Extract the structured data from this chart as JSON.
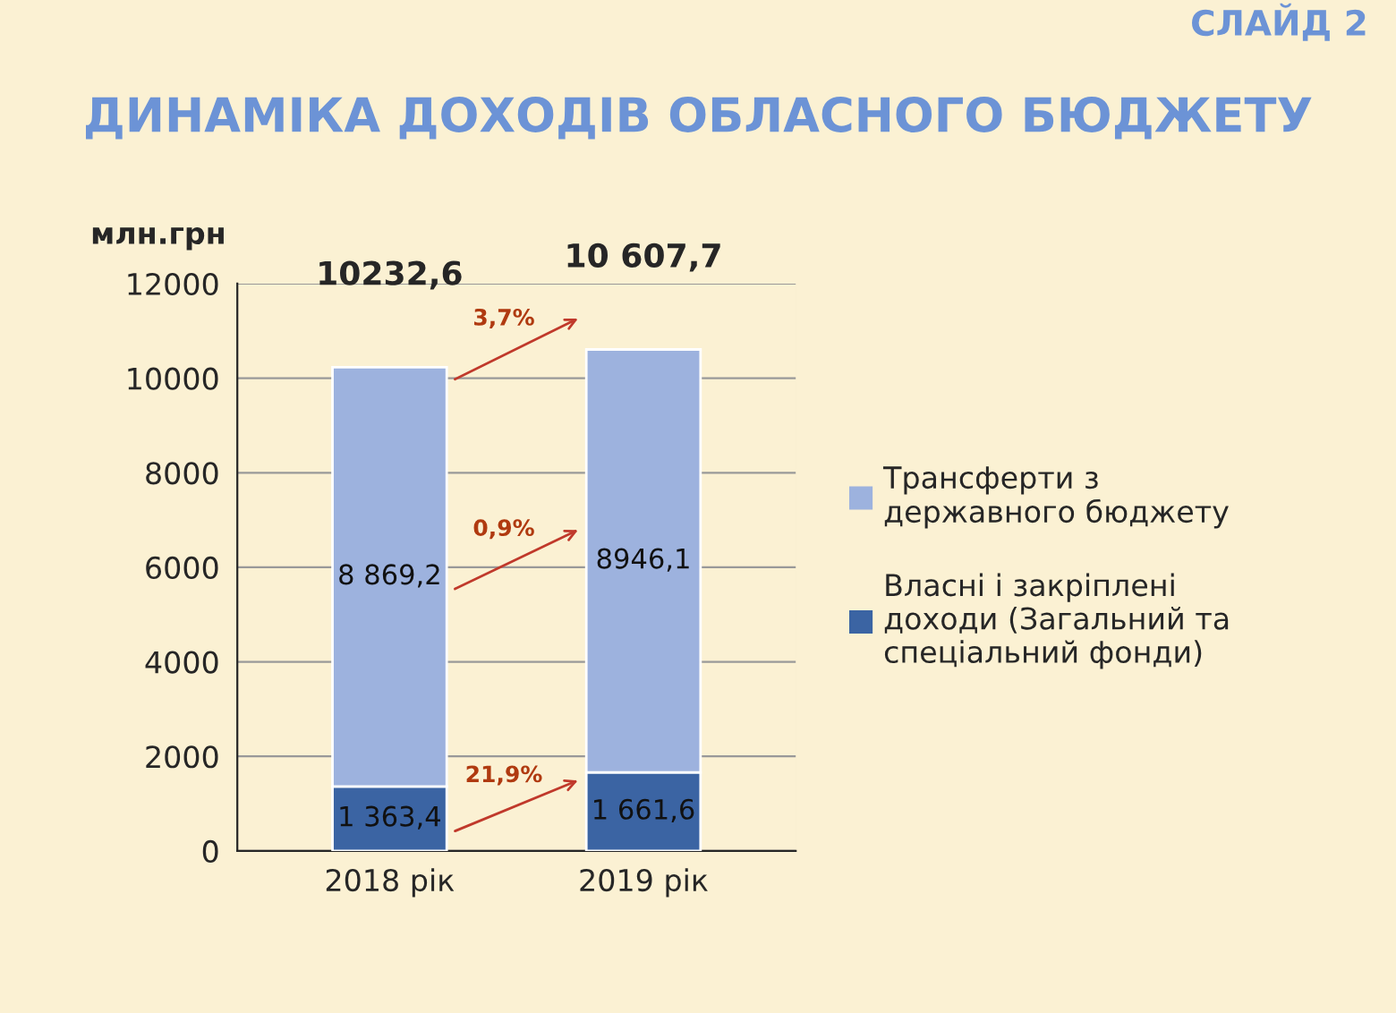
{
  "chart_data": {
    "type": "bar",
    "stacked": true,
    "title": "ДИНАМІКА ДОХОДІВ ОБЛАСНОГО БЮДЖЕТУ",
    "ylabel": "млн.грн",
    "categories": [
      "2018 рік",
      "2019 рік"
    ],
    "series": [
      {
        "name": "Власні і закріплені\nдоходи (Загальний та\nспеціальний фонди)",
        "color": "#3b64a3",
        "values": [
          1363.4,
          1661.6
        ],
        "value_labels": [
          "1 363,4",
          "1 661,6"
        ]
      },
      {
        "name": "Трансферти з\nдержавного бюджету",
        "color": "#9db2de",
        "values": [
          8869.2,
          8946.1
        ],
        "value_labels": [
          "8 869,2",
          "8946,1"
        ]
      }
    ],
    "totals": [
      "10232,6",
      "10 607,7"
    ],
    "ylim": [
      0,
      12000
    ],
    "yticks": [
      0,
      2000,
      4000,
      6000,
      8000,
      10000,
      12000
    ],
    "grid": "y",
    "legend": "right",
    "annotations": [
      "3,7%",
      "0,9%",
      "21,9%",
      "СЛАЙД 2"
    ]
  }
}
